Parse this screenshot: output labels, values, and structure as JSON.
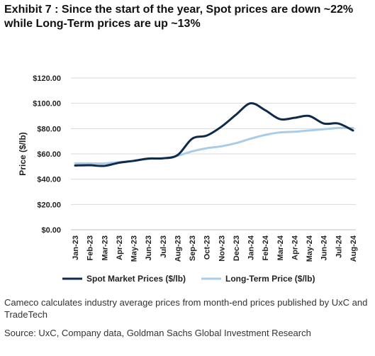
{
  "title": "Exhibit 7 : Since the start of the year, Spot prices are down ~22% while Long-Term prices are up ~13%",
  "note": "Cameco calculates industry average prices from month-end prices published by UxC and TradeTech",
  "source": "Source: UxC, Company data, Goldman Sachs Global Investment Research",
  "chart_data": {
    "type": "line",
    "ylabel": "Price ($/lb)",
    "xlabel": "",
    "ylim": [
      0,
      120
    ],
    "yticks": [
      0,
      20,
      40,
      60,
      80,
      100,
      120
    ],
    "ytick_labels": [
      "$0.00",
      "$20.00",
      "$40.00",
      "$60.00",
      "$80.00",
      "$100.00",
      "$120.00"
    ],
    "grid": "horizontal",
    "legend": "bottom",
    "categories": [
      "Jan-23",
      "Feb-23",
      "Mar-23",
      "Apr-23",
      "May-23",
      "Jun-23",
      "Jul-23",
      "Aug-23",
      "Sep-23",
      "Oct-23",
      "Nov-23",
      "Dec-23",
      "Jan-24",
      "Feb-24",
      "Mar-24",
      "Apr-24",
      "May-24",
      "Jun-24",
      "Jul-24",
      "Aug-24"
    ],
    "series": [
      {
        "name": "Spot Market Prices ($/lb)",
        "color": "#0f2a4a",
        "values": [
          50.8,
          51.0,
          50.5,
          53.0,
          54.5,
          56.3,
          56.5,
          59.0,
          72.0,
          74.5,
          81.5,
          91.0,
          100.0,
          94.5,
          87.5,
          88.5,
          90.0,
          84.0,
          84.0,
          78.5
        ]
      },
      {
        "name": "Long-Term Price ($/lb)",
        "color": "#a9cde8",
        "values": [
          52.5,
          52.5,
          52.5,
          53.5,
          54.5,
          56.0,
          56.5,
          58.5,
          62.0,
          64.5,
          66.0,
          68.5,
          72.0,
          75.0,
          77.0,
          77.5,
          78.5,
          79.5,
          80.5,
          80.5
        ]
      }
    ]
  }
}
